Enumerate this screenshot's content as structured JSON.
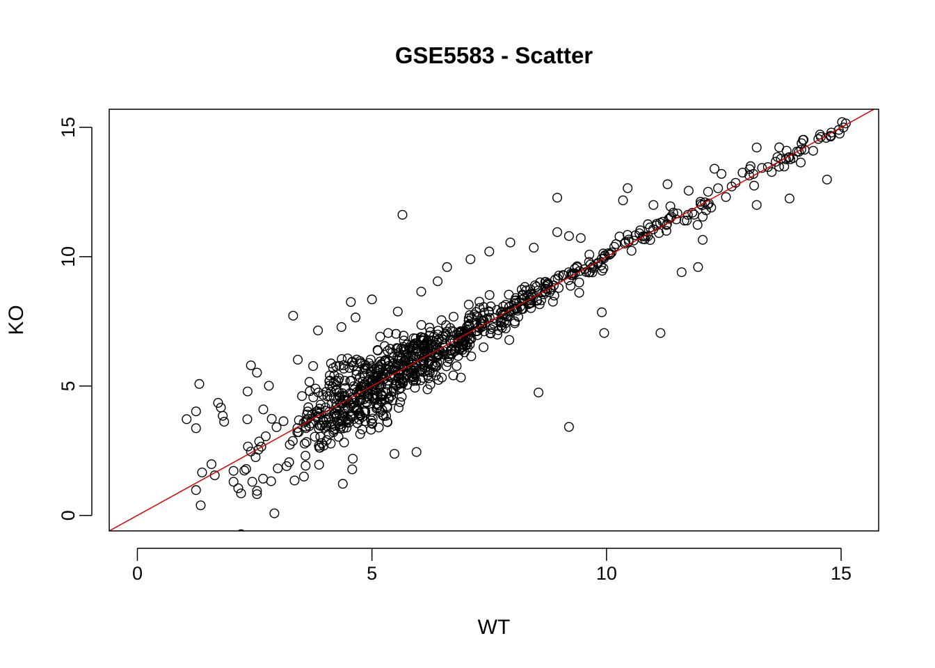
{
  "chart_data": {
    "type": "scatter",
    "title": "GSE5583 - Scatter",
    "xlabel": "WT",
    "ylabel": "KO",
    "xlim": [
      -0.6,
      15.8
    ],
    "ylim": [
      -0.6,
      15.7
    ],
    "xticks": [
      "0",
      "5",
      "10",
      "15"
    ],
    "yticks": [
      "0",
      "5",
      "10",
      "15"
    ],
    "xtick_values": [
      0,
      5,
      10,
      15
    ],
    "ytick_values": [
      0,
      5,
      10,
      15
    ],
    "grid": false,
    "legend": "none",
    "point_shape": "open-circle",
    "point_color": "#000000",
    "reference_line": {
      "slope": 1,
      "intercept": 0,
      "color": "#dd0000"
    },
    "bulk_band": {
      "description_free": true,
      "x_range": [
        2.2,
        15.1
      ],
      "point_count": 900
    },
    "outliers": [
      [
        1.05,
        3.72
      ],
      [
        1.25,
        4.02
      ],
      [
        1.25,
        3.37
      ],
      [
        1.32,
        5.08
      ],
      [
        1.25,
        0.98
      ],
      [
        1.38,
        1.66
      ],
      [
        1.35,
        0.39
      ],
      [
        1.58,
        1.98
      ],
      [
        1.65,
        1.55
      ],
      [
        1.72,
        4.35
      ],
      [
        1.78,
        4.17
      ],
      [
        1.82,
        3.85
      ],
      [
        1.85,
        3.62
      ],
      [
        2.05,
        1.72
      ],
      [
        2.05,
        1.3
      ],
      [
        2.15,
        1.05
      ],
      [
        2.35,
        4.79
      ],
      [
        2.42,
        5.8
      ],
      [
        2.55,
        5.52
      ],
      [
        2.45,
        1.3
      ],
      [
        2.55,
        0.95
      ],
      [
        2.55,
        0.82
      ],
      [
        2.92,
        0.08
      ],
      [
        2.68,
        1.42
      ],
      [
        2.85,
        1.32
      ],
      [
        3.35,
        1.35
      ],
      [
        3.32,
        7.72
      ],
      [
        3.42,
        6.02
      ],
      [
        3.55,
        1.5
      ],
      [
        3.85,
        7.15
      ],
      [
        4.35,
        7.28
      ],
      [
        4.38,
        1.22
      ],
      [
        4.58,
        1.78
      ],
      [
        4.55,
        8.25
      ],
      [
        4.65,
        7.65
      ],
      [
        5.0,
        8.35
      ],
      [
        5.48,
        2.38
      ],
      [
        5.55,
        7.88
      ],
      [
        5.65,
        11.62
      ],
      [
        5.95,
        2.45
      ],
      [
        6.05,
        8.65
      ],
      [
        6.4,
        9.05
      ],
      [
        6.6,
        9.6
      ],
      [
        7.1,
        9.9
      ],
      [
        7.5,
        10.2
      ],
      [
        7.95,
        10.55
      ],
      [
        8.55,
        4.75
      ],
      [
        8.45,
        10.35
      ],
      [
        8.95,
        12.28
      ],
      [
        8.95,
        10.95
      ],
      [
        9.2,
        3.42
      ],
      [
        9.2,
        10.8
      ],
      [
        9.9,
        7.85
      ],
      [
        9.45,
        10.72
      ],
      [
        9.95,
        7.05
      ],
      [
        10.45,
        12.65
      ],
      [
        10.35,
        12.18
      ],
      [
        11.0,
        12.0
      ],
      [
        11.15,
        7.05
      ],
      [
        11.3,
        12.8
      ],
      [
        11.6,
        9.4
      ],
      [
        11.95,
        9.6
      ],
      [
        11.75,
        12.55
      ],
      [
        12.05,
        10.65
      ],
      [
        12.3,
        13.4
      ],
      [
        12.45,
        13.2
      ],
      [
        12.9,
        13.25
      ],
      [
        13.2,
        12.0
      ],
      [
        13.2,
        14.22
      ],
      [
        13.9,
        12.25
      ],
      [
        14.7,
        12.98
      ],
      [
        14.2,
        14.52
      ],
      [
        14.55,
        14.72
      ],
      [
        14.95,
        14.9
      ],
      [
        15.1,
        15.15
      ]
    ]
  }
}
